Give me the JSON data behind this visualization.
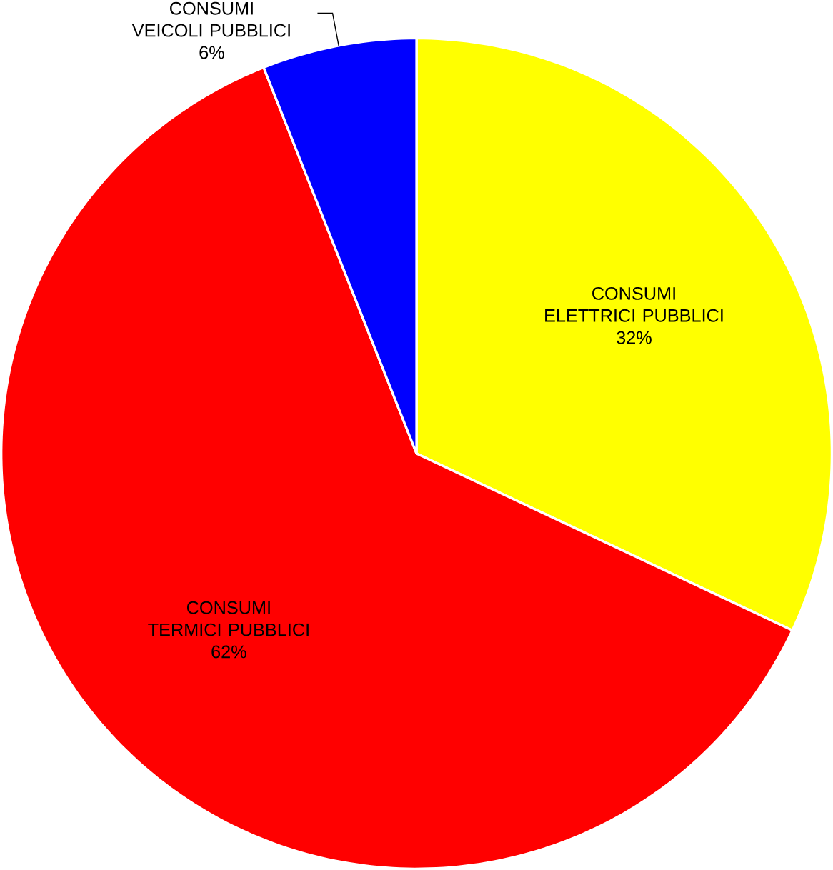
{
  "chart_data": {
    "type": "pie",
    "categories": [
      "CONSUMI ELETTRICI PUBBLICI",
      "CONSUMI TERMICI PUBBLICI",
      "CONSUMI VEICOLI PUBBLICI"
    ],
    "values": [
      32,
      62,
      6
    ],
    "value_labels": [
      "32%",
      "62%",
      "6%"
    ],
    "colors": [
      "#ffff00",
      "#ff0000",
      "#0000ff"
    ]
  }
}
